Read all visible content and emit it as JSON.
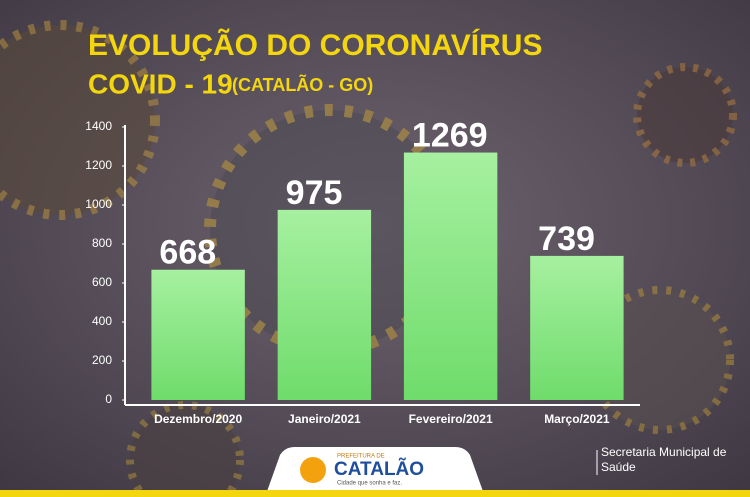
{
  "chart_data": {
    "type": "bar",
    "title": "EVOLUÇÃO DO CORONAVÍRUS",
    "subtitle": "COVID - 19",
    "region": "(CATALÃO - GO)",
    "categories": [
      "Dezembro/2020",
      "Janeiro/2021",
      "Fevereiro/2021",
      "Março/2021"
    ],
    "values": [
      668,
      975,
      1269,
      739
    ],
    "color": "#8ee88a",
    "ylim": [
      0,
      1400
    ],
    "yticks": [
      0,
      200,
      400,
      600,
      800,
      1000,
      1200,
      1400
    ],
    "grid": false
  },
  "footer": {
    "credit": "Secretaria Municipal de Saúde",
    "logo_top": "PREFEITURA DE",
    "logo": "CATALÃO",
    "logo_tagline": "Cidade que sonha e faz."
  }
}
